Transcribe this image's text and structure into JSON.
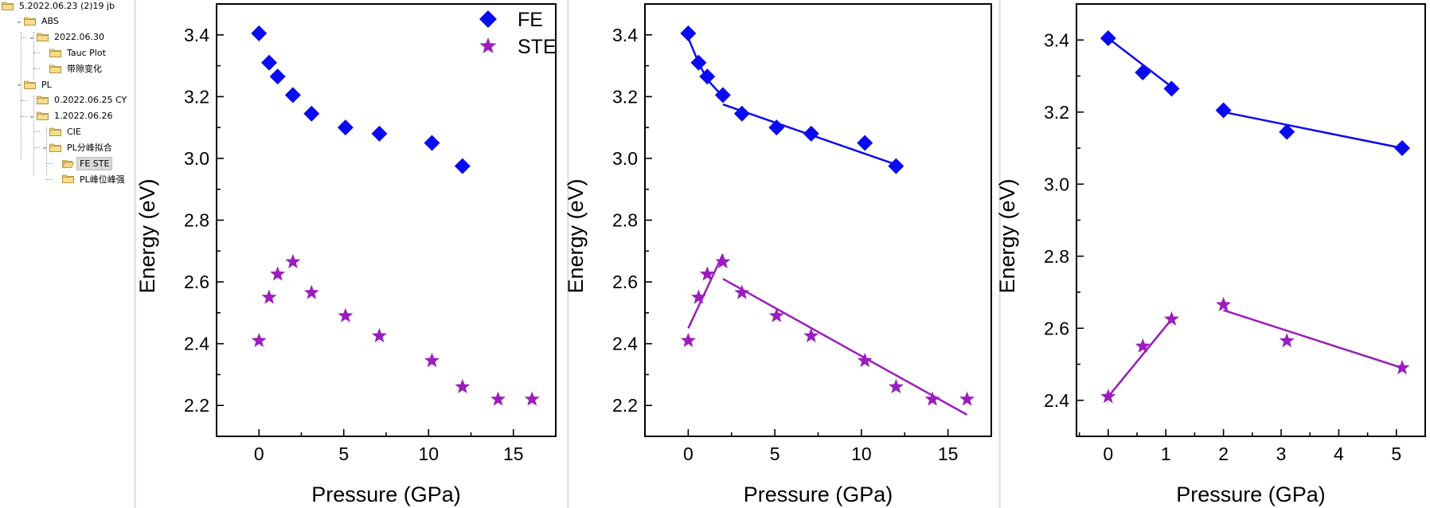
{
  "tree": {
    "items": [
      {
        "label": "5.2022.06.23 (2)19 jb",
        "level": 0,
        "chevron": "",
        "selected": false
      },
      {
        "label": "ABS",
        "level": 1,
        "chevron": "⌄",
        "selected": false
      },
      {
        "label": "2022.06.30",
        "level": 2,
        "chevron": "⌄",
        "selected": false
      },
      {
        "label": "Tauc Plot",
        "level": 3,
        "chevron": "",
        "selected": false
      },
      {
        "label": "带隙变化",
        "level": 3,
        "chevron": "",
        "selected": false
      },
      {
        "label": "PL",
        "level": 1,
        "chevron": "⌄",
        "selected": false
      },
      {
        "label": "0.2022.06.25 CY",
        "level": 2,
        "chevron": "",
        "selected": false
      },
      {
        "label": "1.2022.06.26",
        "level": 2,
        "chevron": "⌄",
        "selected": false
      },
      {
        "label": "CIE",
        "level": 3,
        "chevron": "",
        "selected": false
      },
      {
        "label": "PL分峰拟合",
        "level": 3,
        "chevron": "⌄",
        "selected": false
      },
      {
        "label": "FE STE",
        "level": 4,
        "chevron": "",
        "selected": true
      },
      {
        "label": "PL峰位峰强",
        "level": 4,
        "chevron": "",
        "selected": false
      }
    ]
  },
  "colors": {
    "FE": "#0b0bf0",
    "STE": "#9b1dbd",
    "axis": "#000000"
  },
  "chart_data": [
    {
      "type": "scatter",
      "xlabel": "Pressure (GPa)",
      "ylabel": "Energy (eV)",
      "xlim": [
        -2.5,
        17.5
      ],
      "ylim": [
        2.1,
        3.5
      ],
      "xticks": [
        "0",
        "5",
        "10",
        "15"
      ],
      "yticks": [
        "2.2",
        "2.4",
        "2.6",
        "2.8",
        "3.0",
        "3.2",
        "3.4"
      ],
      "legend": {
        "position": "top-right",
        "entries": [
          "FE",
          "STE"
        ]
      },
      "series": [
        {
          "name": "FE",
          "marker": "diamond",
          "x": [
            0,
            0.6,
            1.1,
            2,
            3.1,
            5.1,
            7.1,
            10.2,
            12
          ],
          "y": [
            3.405,
            3.31,
            3.265,
            3.205,
            3.145,
            3.1,
            3.08,
            3.05,
            2.975
          ]
        },
        {
          "name": "STE",
          "marker": "star",
          "x": [
            0,
            0.6,
            1.1,
            2,
            3.1,
            5.1,
            7.1,
            10.2,
            12,
            14.1,
            16.1
          ],
          "y": [
            2.41,
            2.55,
            2.625,
            2.665,
            2.565,
            2.49,
            2.425,
            2.345,
            2.26,
            2.22,
            2.22
          ]
        }
      ],
      "fits": []
    },
    {
      "type": "scatter",
      "xlabel": "Pressure (GPa)",
      "ylabel": "Energy (eV)",
      "xlim": [
        -2.5,
        17.5
      ],
      "ylim": [
        2.1,
        3.5
      ],
      "xticks": [
        "0",
        "5",
        "10",
        "15"
      ],
      "yticks": [
        "2.2",
        "2.4",
        "2.6",
        "2.8",
        "3.0",
        "3.2",
        "3.4"
      ],
      "legend": null,
      "series": [
        {
          "name": "FE",
          "marker": "diamond",
          "x": [
            0,
            0.6,
            1.1,
            2,
            3.1,
            5.1,
            7.1,
            10.2,
            12
          ],
          "y": [
            3.405,
            3.31,
            3.265,
            3.205,
            3.145,
            3.1,
            3.08,
            3.05,
            2.975
          ]
        },
        {
          "name": "STE",
          "marker": "star",
          "x": [
            0,
            0.6,
            1.1,
            2,
            3.1,
            5.1,
            7.1,
            10.2,
            12,
            14.1,
            16.1
          ],
          "y": [
            2.41,
            2.55,
            2.625,
            2.665,
            2.565,
            2.49,
            2.425,
            2.345,
            2.26,
            2.22,
            2.22
          ]
        }
      ],
      "fits": [
        {
          "series": "FE",
          "x": [
            0,
            0.6,
            1.1,
            2
          ],
          "y": [
            3.39,
            3.31,
            3.255,
            3.2
          ]
        },
        {
          "series": "FE",
          "x": [
            2,
            12
          ],
          "y": [
            3.175,
            2.98
          ]
        },
        {
          "series": "STE",
          "x": [
            0,
            2
          ],
          "y": [
            2.45,
            2.69
          ]
        },
        {
          "series": "STE",
          "x": [
            2,
            16.1
          ],
          "y": [
            2.61,
            2.17
          ]
        }
      ]
    },
    {
      "type": "scatter",
      "xlabel": "Pressure (GPa)",
      "ylabel": "Energy (eV)",
      "xlim": [
        -0.55,
        5.5
      ],
      "ylim": [
        2.3,
        3.5
      ],
      "xticks": [
        "0",
        "1",
        "2",
        "3",
        "4",
        "5"
      ],
      "yticks": [
        "2.4",
        "2.6",
        "2.8",
        "3.0",
        "3.2",
        "3.4"
      ],
      "legend": null,
      "series": [
        {
          "name": "FE",
          "marker": "diamond",
          "x": [
            0,
            0.6,
            1.1,
            2,
            3.1,
            5.1
          ],
          "y": [
            3.405,
            3.31,
            3.265,
            3.205,
            3.145,
            3.1
          ]
        },
        {
          "name": "STE",
          "marker": "star",
          "x": [
            0,
            0.6,
            1.1,
            2,
            3.1,
            5.1
          ],
          "y": [
            2.41,
            2.55,
            2.625,
            2.665,
            2.565,
            2.49
          ]
        }
      ],
      "fits": [
        {
          "series": "FE",
          "x": [
            0,
            1.1
          ],
          "y": [
            3.405,
            3.27
          ]
        },
        {
          "series": "FE",
          "x": [
            2,
            5.1
          ],
          "y": [
            3.2,
            3.1
          ]
        },
        {
          "series": "STE",
          "x": [
            0,
            1.1
          ],
          "y": [
            2.41,
            2.625
          ]
        },
        {
          "series": "STE",
          "x": [
            2,
            5.1
          ],
          "y": [
            2.65,
            2.49
          ]
        }
      ]
    }
  ]
}
